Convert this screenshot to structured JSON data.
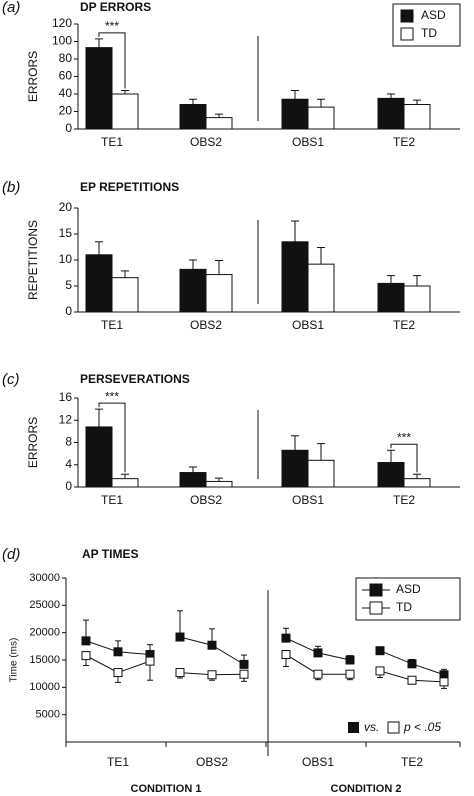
{
  "chart_data": [
    {
      "type": "bar",
      "panel_label": "(a)",
      "title": "DP ERRORS",
      "y_label": "ERRORS",
      "categories": [
        "TE1",
        "OBS2",
        "OBS1",
        "TE2"
      ],
      "series": [
        {
          "name": "ASD",
          "color": "#111111",
          "values": [
            93,
            28,
            34,
            35
          ],
          "errors": [
            10,
            6,
            10,
            5
          ]
        },
        {
          "name": "TD",
          "color": "#ffffff",
          "values": [
            40,
            13,
            25,
            28
          ],
          "errors": [
            4,
            4,
            9,
            5
          ]
        }
      ],
      "ylim": [
        0,
        120
      ],
      "yticks": [
        0,
        20,
        40,
        60,
        80,
        100,
        120
      ],
      "legend": "upper right",
      "annotations": [
        {
          "text": "***",
          "category": "TE1"
        }
      ]
    },
    {
      "type": "bar",
      "panel_label": "(b)",
      "title": "EP REPETITIONS",
      "y_label": "REPETITIONS",
      "categories": [
        "TE1",
        "OBS2",
        "OBS1",
        "TE2"
      ],
      "series": [
        {
          "name": "ASD",
          "color": "#111111",
          "values": [
            11,
            8.2,
            13.5,
            5.5
          ],
          "errors": [
            2.5,
            1.8,
            4,
            1.5
          ]
        },
        {
          "name": "TD",
          "color": "#ffffff",
          "values": [
            6.6,
            7.2,
            9.2,
            5.0
          ],
          "errors": [
            1.3,
            2.7,
            3.2,
            2
          ]
        }
      ],
      "ylim": [
        0,
        20
      ],
      "yticks": [
        0,
        5,
        10,
        15,
        20
      ],
      "annotations": []
    },
    {
      "type": "bar",
      "panel_label": "(c)",
      "title": "PERSEVERATIONS",
      "y_label": "ERRORS",
      "categories": [
        "TE1",
        "OBS2",
        "OBS1",
        "TE2"
      ],
      "series": [
        {
          "name": "ASD",
          "color": "#111111",
          "values": [
            10.8,
            2.6,
            6.6,
            4.4
          ],
          "errors": [
            3.2,
            1,
            2.6,
            2.2
          ]
        },
        {
          "name": "TD",
          "color": "#ffffff",
          "values": [
            1.5,
            1.0,
            4.8,
            1.5
          ],
          "errors": [
            0.8,
            0.6,
            3,
            0.8
          ]
        }
      ],
      "ylim": [
        0,
        16
      ],
      "yticks": [
        0,
        4,
        8,
        12,
        16
      ],
      "annotations": [
        {
          "text": "***",
          "category": "TE1"
        },
        {
          "text": "***",
          "category": "TE2"
        }
      ]
    },
    {
      "type": "line",
      "panel_label": "(d)",
      "title": "AP TIMES",
      "y_label": "Time (ms)",
      "categories": [
        null,
        "TE1",
        null,
        null,
        null,
        "OBS2",
        null,
        null,
        null,
        "OBS1",
        null,
        null,
        null,
        "TE2",
        null
      ],
      "series": [
        {
          "name": "ASD",
          "color": "#111111",
          "values": [
            18500,
            16500,
            16000,
            null,
            19200,
            17700,
            14200,
            null,
            19000,
            16300,
            15000,
            null,
            16700,
            14300,
            12300
          ],
          "errors": [
            3800,
            2000,
            1800,
            null,
            4800,
            3000,
            1700,
            null,
            1800,
            1200,
            800,
            null,
            600,
            800,
            1000
          ]
        },
        {
          "name": "TD",
          "color": "#ffffff",
          "values": [
            15800,
            12700,
            14800,
            null,
            12700,
            12300,
            12400,
            null,
            16000,
            12400,
            12400,
            null,
            13000,
            11300,
            11000
          ],
          "errors": [
            1800,
            1800,
            3500,
            null,
            1000,
            1000,
            1300,
            null,
            2200,
            1000,
            1000,
            null,
            1200,
            700,
            1200
          ]
        }
      ],
      "ylim": [
        0,
        30000
      ],
      "yticks": [
        5000,
        10000,
        15000,
        20000,
        25000,
        30000
      ],
      "legend": "upper right",
      "groups": [
        "CONDITION 1",
        "CONDITION 2"
      ],
      "note": {
        "vs": "vs.",
        "p": "p < .05"
      }
    }
  ]
}
